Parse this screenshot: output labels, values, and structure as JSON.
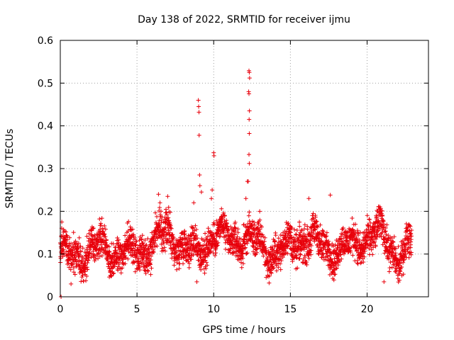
{
  "chart_data": {
    "type": "scatter",
    "title": "Day 138 of 2022, SRMTID for receiver ijmu",
    "xlabel": "GPS time / hours",
    "ylabel": "SRMTID / TECUs",
    "xlim": [
      0,
      24
    ],
    "ylim": [
      0,
      0.6
    ],
    "xticks": [
      0,
      5,
      10,
      15,
      20
    ],
    "yticks": [
      0,
      0.1,
      0.2,
      0.3,
      0.4,
      0.5,
      0.6
    ],
    "xtick_labels": [
      "0",
      "5",
      "10",
      "15",
      "20"
    ],
    "ytick_labels": [
      "0",
      "0.1",
      "0.2",
      "0.3",
      "0.4",
      "0.5",
      "0.6"
    ],
    "grid": true,
    "marker": "+",
    "series_color": "#e8000b",
    "sampling_interval_hours": 0.0083,
    "time_range_hours": [
      0,
      22.9
    ],
    "baseline_profile": [
      {
        "x": 0,
        "y": 0.11
      },
      {
        "x": 1,
        "y": 0.09
      },
      {
        "x": 2,
        "y": 0.115
      },
      {
        "x": 3,
        "y": 0.11
      },
      {
        "x": 4,
        "y": 0.105
      },
      {
        "x": 5,
        "y": 0.1
      },
      {
        "x": 6,
        "y": 0.13
      },
      {
        "x": 7,
        "y": 0.15
      },
      {
        "x": 8,
        "y": 0.12
      },
      {
        "x": 9,
        "y": 0.1
      },
      {
        "x": 10,
        "y": 0.15
      },
      {
        "x": 11,
        "y": 0.13
      },
      {
        "x": 12,
        "y": 0.14
      },
      {
        "x": 13,
        "y": 0.12
      },
      {
        "x": 14,
        "y": 0.1
      },
      {
        "x": 15,
        "y": 0.12
      },
      {
        "x": 16,
        "y": 0.14
      },
      {
        "x": 17,
        "y": 0.12
      },
      {
        "x": 18,
        "y": 0.11
      },
      {
        "x": 19,
        "y": 0.12
      },
      {
        "x": 20,
        "y": 0.14
      },
      {
        "x": 21,
        "y": 0.15
      },
      {
        "x": 22,
        "y": 0.09
      },
      {
        "x": 22.9,
        "y": 0.12
      }
    ],
    "spread": 0.028,
    "outliers": [
      {
        "x": 0.05,
        "y": 0.0
      },
      {
        "x": 0.1,
        "y": 0.175
      },
      {
        "x": 6.4,
        "y": 0.24
      },
      {
        "x": 6.5,
        "y": 0.22
      },
      {
        "x": 7.0,
        "y": 0.235
      },
      {
        "x": 8.7,
        "y": 0.22
      },
      {
        "x": 9.0,
        "y": 0.46
      },
      {
        "x": 9.02,
        "y": 0.445
      },
      {
        "x": 9.04,
        "y": 0.432
      },
      {
        "x": 9.05,
        "y": 0.378
      },
      {
        "x": 9.08,
        "y": 0.285
      },
      {
        "x": 9.1,
        "y": 0.26
      },
      {
        "x": 9.2,
        "y": 0.245
      },
      {
        "x": 9.85,
        "y": 0.23
      },
      {
        "x": 9.9,
        "y": 0.25
      },
      {
        "x": 10.0,
        "y": 0.337
      },
      {
        "x": 10.02,
        "y": 0.33
      },
      {
        "x": 12.2,
        "y": 0.27
      },
      {
        "x": 12.3,
        "y": 0.529
      },
      {
        "x": 12.32,
        "y": 0.525
      },
      {
        "x": 12.34,
        "y": 0.512
      },
      {
        "x": 12.28,
        "y": 0.48
      },
      {
        "x": 12.3,
        "y": 0.475
      },
      {
        "x": 12.33,
        "y": 0.435
      },
      {
        "x": 12.31,
        "y": 0.415
      },
      {
        "x": 12.32,
        "y": 0.382
      },
      {
        "x": 12.3,
        "y": 0.333
      },
      {
        "x": 12.32,
        "y": 0.312
      },
      {
        "x": 12.25,
        "y": 0.27
      },
      {
        "x": 12.1,
        "y": 0.23
      },
      {
        "x": 13.0,
        "y": 0.2
      },
      {
        "x": 16.2,
        "y": 0.23
      },
      {
        "x": 17.6,
        "y": 0.238
      },
      {
        "x": 21.1,
        "y": 0.035
      },
      {
        "x": 0.7,
        "y": 0.03
      },
      {
        "x": 8.9,
        "y": 0.035
      }
    ]
  }
}
